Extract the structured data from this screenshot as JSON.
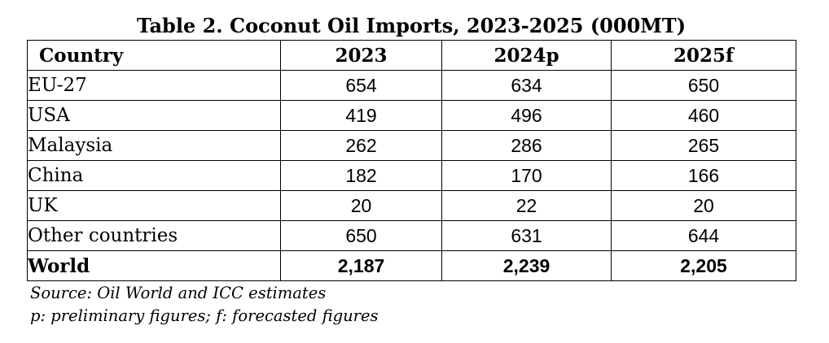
{
  "table": {
    "title": "Table 2. Coconut Oil Imports, 2023-2025 (000MT)",
    "headers": [
      "Country",
      "2023",
      "2024p",
      "2025f"
    ],
    "rows": [
      {
        "country": "EU-27",
        "values": [
          "654",
          "634",
          "650"
        ]
      },
      {
        "country": "USA",
        "values": [
          "419",
          "496",
          "460"
        ]
      },
      {
        "country": "Malaysia",
        "values": [
          "262",
          "286",
          "265"
        ]
      },
      {
        "country": "China",
        "values": [
          "182",
          "170",
          "166"
        ]
      },
      {
        "country": "UK",
        "values": [
          "20",
          "22",
          "20"
        ]
      },
      {
        "country": "Other countries",
        "values": [
          "650",
          "631",
          "644"
        ]
      }
    ],
    "total": {
      "country": "World",
      "values": [
        "2,187",
        "2,239",
        "2,205"
      ]
    }
  },
  "notes": {
    "source": "Source: Oil World and ICC estimates",
    "legend": "p: preliminary figures; f: forecasted figures"
  }
}
